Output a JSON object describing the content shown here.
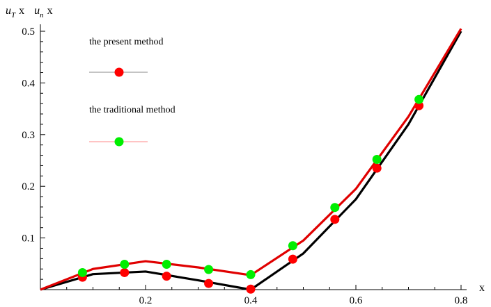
{
  "chart_data": {
    "type": "line",
    "title": "",
    "ylabel_parts": [
      "u",
      "T",
      "x",
      "u",
      "n",
      "x"
    ],
    "xlabel": "x",
    "xlim": [
      0,
      0.8
    ],
    "ylim": [
      0,
      0.5
    ],
    "x_ticks": [
      0.2,
      0.4,
      0.6,
      0.8
    ],
    "x_tick_labels": [
      "0.2",
      "0.4",
      "0.6",
      "0.8"
    ],
    "y_ticks": [
      0.1,
      0.2,
      0.3,
      0.4,
      0.5
    ],
    "y_tick_labels": [
      "0.1",
      "0.2",
      "0.3",
      "0.4",
      "0.5"
    ],
    "grid": false,
    "legend_position": "top-left",
    "lines": [
      {
        "color": "#000000",
        "x": [
          0,
          0.1,
          0.2,
          0.3,
          0.4,
          0.5,
          0.6,
          0.7,
          0.8
        ],
        "y": [
          0,
          0.03,
          0.035,
          0.018,
          0.0,
          0.07,
          0.175,
          0.32,
          0.5
        ]
      },
      {
        "color": "#e00000",
        "x": [
          0,
          0.1,
          0.2,
          0.3,
          0.4,
          0.5,
          0.6,
          0.7,
          0.8
        ],
        "y": [
          0,
          0.04,
          0.055,
          0.043,
          0.028,
          0.095,
          0.195,
          0.335,
          0.505
        ]
      }
    ],
    "series": [
      {
        "name": "the present method",
        "marker_color": "#ff0000",
        "legend_line_color": "#888888",
        "x": [
          0.08,
          0.16,
          0.24,
          0.32,
          0.4,
          0.48,
          0.56,
          0.64,
          0.72
        ],
        "y": [
          0.024,
          0.033,
          0.026,
          0.012,
          0.001,
          0.059,
          0.136,
          0.235,
          0.356
        ]
      },
      {
        "name": "the traditional method",
        "marker_color": "#00ee00",
        "legend_line_color": "#ff8888",
        "x": [
          0.08,
          0.16,
          0.24,
          0.32,
          0.4,
          0.48,
          0.56,
          0.64,
          0.72
        ],
        "y": [
          0.033,
          0.049,
          0.049,
          0.039,
          0.029,
          0.085,
          0.159,
          0.252,
          0.368
        ]
      }
    ]
  }
}
